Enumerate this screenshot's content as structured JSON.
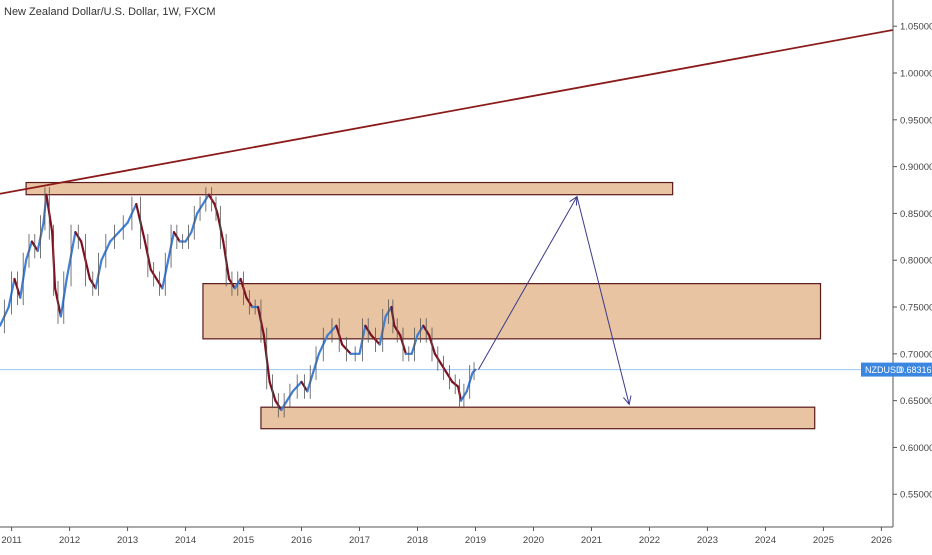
{
  "chart_data": {
    "type": "line",
    "title": "New Zealand Dollar/U.S. Dollar, 1W, FXCM",
    "symbol": "NZDUSD",
    "last_price": 0.68316,
    "last_price_label": "0.68316",
    "xlim": [
      2010.8,
      2026.2
    ],
    "ylim": [
      0.515,
      1.078
    ],
    "x_ticks": [
      2011,
      2012,
      2013,
      2014,
      2015,
      2016,
      2017,
      2018,
      2019,
      2020,
      2021,
      2022,
      2023,
      2024,
      2025,
      2026
    ],
    "x_tick_labels": [
      "2011",
      "2012",
      "2013",
      "2014",
      "2015",
      "2016",
      "2017",
      "2018",
      "2019",
      "2020",
      "2021",
      "2022",
      "2023",
      "2024",
      "2025",
      "2026"
    ],
    "y_ticks": [
      0.55,
      0.6,
      0.65,
      0.7,
      0.75,
      0.8,
      0.85,
      0.9,
      0.95,
      1.0,
      1.05
    ],
    "y_tick_labels": [
      "0.55000",
      "0.60000",
      "0.65000",
      "0.70000",
      "0.75000",
      "0.80000",
      "0.85000",
      "0.90000",
      "0.95000",
      "1.00000",
      "1.05000"
    ],
    "grid": false,
    "colors": {
      "price_up": "#3f7fd6",
      "price_down": "#7a1020",
      "trendline": "#8b1a1a",
      "zone_fill": "#e8c4a2",
      "zone_border": "#5a1a1a",
      "arrow": "#3a3a8a",
      "price_line": "#9ec3ee",
      "price_label_bg": "#3b87e0",
      "axis_text": "#444444"
    },
    "series": [
      {
        "type": "price",
        "x": [
          2010.8,
          2010.95,
          2011.05,
          2011.15,
          2011.25,
          2011.35,
          2011.45,
          2011.55,
          2011.6,
          2011.7,
          2011.75,
          2011.85,
          2011.95,
          2012.1,
          2012.2,
          2012.35,
          2012.45,
          2012.55,
          2012.7,
          2012.85,
          2013.0,
          2013.15,
          2013.3,
          2013.4,
          2013.5,
          2013.6,
          2013.7,
          2013.8,
          2013.9,
          2014.0,
          2014.1,
          2014.2,
          2014.3,
          2014.4,
          2014.5,
          2014.55,
          2014.65,
          2014.75,
          2014.85,
          2014.95,
          2015.05,
          2015.15,
          2015.25,
          2015.35,
          2015.45,
          2015.55,
          2015.65,
          2015.75,
          2015.85,
          2016.0,
          2016.1,
          2016.2,
          2016.3,
          2016.45,
          2016.6,
          2016.7,
          2016.85,
          2017.0,
          2017.1,
          2017.2,
          2017.35,
          2017.45,
          2017.55,
          2017.6,
          2017.7,
          2017.8,
          2017.9,
          2018.0,
          2018.1,
          2018.2,
          2018.3,
          2018.4,
          2018.5,
          2018.6,
          2018.7,
          2018.75,
          2018.85,
          2018.95,
          2019.0
        ],
        "y": [
          0.73,
          0.75,
          0.78,
          0.76,
          0.8,
          0.82,
          0.81,
          0.84,
          0.87,
          0.83,
          0.77,
          0.74,
          0.78,
          0.83,
          0.82,
          0.78,
          0.77,
          0.8,
          0.82,
          0.83,
          0.84,
          0.86,
          0.82,
          0.79,
          0.78,
          0.77,
          0.8,
          0.83,
          0.82,
          0.82,
          0.83,
          0.85,
          0.86,
          0.87,
          0.86,
          0.85,
          0.82,
          0.78,
          0.77,
          0.78,
          0.76,
          0.75,
          0.75,
          0.72,
          0.67,
          0.65,
          0.64,
          0.65,
          0.66,
          0.67,
          0.66,
          0.68,
          0.7,
          0.72,
          0.73,
          0.71,
          0.7,
          0.7,
          0.73,
          0.72,
          0.71,
          0.74,
          0.75,
          0.73,
          0.72,
          0.7,
          0.7,
          0.72,
          0.73,
          0.72,
          0.7,
          0.69,
          0.68,
          0.67,
          0.665,
          0.65,
          0.66,
          0.68,
          0.683
        ]
      },
      {
        "type": "trendline",
        "x": [
          2010.8,
          2026.2
        ],
        "y": [
          0.871,
          1.046
        ]
      }
    ],
    "zones": [
      {
        "x0": 2011.25,
        "x1": 2022.4,
        "y0": 0.87,
        "y1": 0.883
      },
      {
        "x0": 2014.3,
        "x1": 2024.95,
        "y0": 0.716,
        "y1": 0.775
      },
      {
        "x0": 2015.3,
        "x1": 2024.85,
        "y0": 0.62,
        "y1": 0.643
      }
    ],
    "arrows": [
      {
        "x": [
          2019.05,
          2020.75
        ],
        "y": [
          0.683,
          0.868
        ]
      },
      {
        "x": [
          2020.75,
          2021.65
        ],
        "y": [
          0.868,
          0.646
        ]
      }
    ]
  }
}
